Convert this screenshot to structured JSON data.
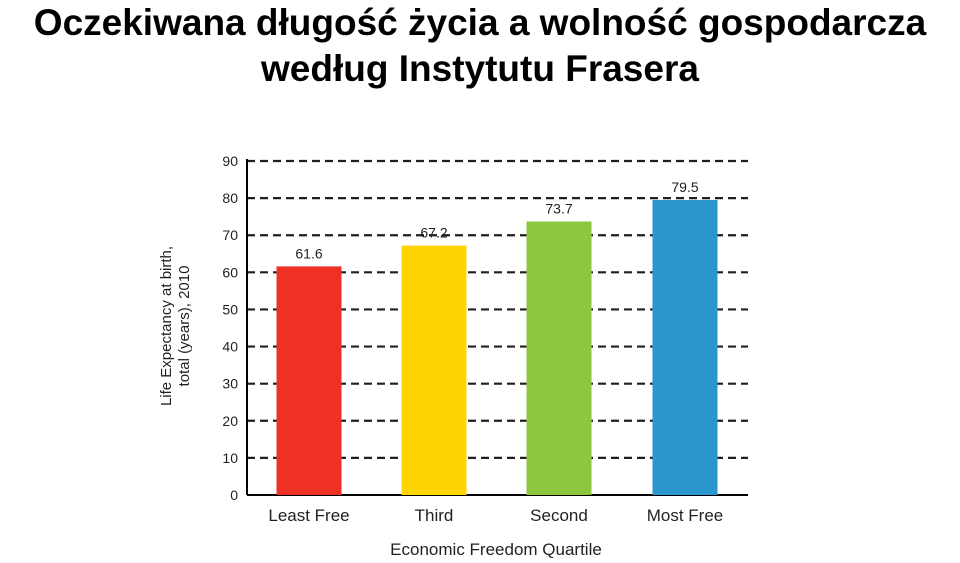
{
  "slide": {
    "title_line1": "Oczekiwana długość życia a wolność gospodarcza",
    "title_line2": "według Instytutu Frasera"
  },
  "chart_data": {
    "type": "bar",
    "categories": [
      "Least Free",
      "Third",
      "Second",
      "Most Free"
    ],
    "values": [
      61.6,
      67.2,
      73.7,
      79.5
    ],
    "value_labels": [
      "61.6",
      "67.2",
      "73.7",
      "79.5"
    ],
    "colors": [
      "#ee3124",
      "#ffd400",
      "#8dc63f",
      "#2b95cd"
    ],
    "xlabel": "Economic Freedom Quartile",
    "ylabel_line1": "Life Expectancy at birth,",
    "ylabel_line2": "total (years), 2010",
    "ylim": [
      0,
      90
    ],
    "yticks": [
      0,
      10,
      20,
      30,
      40,
      50,
      60,
      70,
      80,
      90
    ],
    "grid": true,
    "grid_style": "dashed"
  }
}
